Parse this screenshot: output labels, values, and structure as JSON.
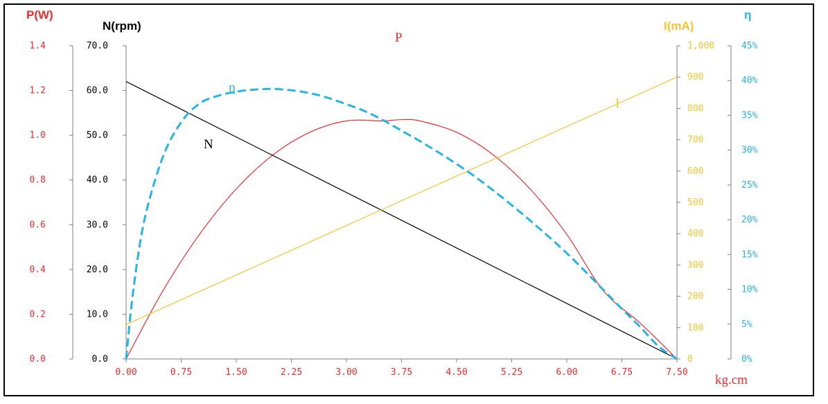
{
  "chart_data": {
    "type": "line",
    "xlabel": "kg.cm",
    "x_ticks": [
      "0.00",
      "0.75",
      "1.50",
      "2.25",
      "3.00",
      "3.75",
      "4.50",
      "5.25",
      "6.00",
      "6.75",
      "7.50"
    ],
    "xlim": [
      0,
      7.5
    ],
    "axes": {
      "P": {
        "title": "P(W)",
        "ylim": [
          0,
          1.4
        ],
        "ticks": [
          "0.0",
          "0.2",
          "0.4",
          "0.6",
          "0.8",
          "1.0",
          "1.2",
          "1.4"
        ]
      },
      "N": {
        "title": "N(rpm)",
        "ylim": [
          0,
          70
        ],
        "ticks": [
          "0.0",
          "10.0",
          "20.0",
          "30.0",
          "40.0",
          "50.0",
          "60.0",
          "70.0"
        ]
      },
      "I": {
        "title": "I(mA)",
        "ylim": [
          0,
          1000
        ],
        "ticks": [
          "0",
          "100",
          "200",
          "300",
          "400",
          "500",
          "600",
          "700",
          "800",
          "900",
          "1,000"
        ]
      },
      "eta": {
        "title": "η",
        "ylim": [
          0,
          45
        ],
        "ticks": [
          "0%",
          "5%",
          "10%",
          "15%",
          "20%",
          "25%",
          "30%",
          "35%",
          "40%",
          "45%"
        ]
      }
    },
    "series": [
      {
        "name": "P",
        "axis": "P",
        "style": "solid",
        "x": [
          0,
          0.5,
          1,
          1.5,
          2,
          2.5,
          3,
          3.5,
          3.75,
          4,
          4.5,
          5,
          5.5,
          6,
          6.5,
          7,
          7.5
        ],
        "y": [
          0,
          0.304,
          0.557,
          0.76,
          0.912,
          1.013,
          1.064,
          1.064,
          1.07,
          1.064,
          1.013,
          0.912,
          0.76,
          0.557,
          0.304,
          0.16,
          0
        ]
      },
      {
        "name": "N",
        "axis": "N",
        "style": "solid",
        "x": [
          0,
          7.5
        ],
        "y": [
          62,
          0
        ]
      },
      {
        "name": "I",
        "axis": "I",
        "style": "solid",
        "x": [
          0,
          7.5
        ],
        "y": [
          110,
          900
        ]
      },
      {
        "name": "η",
        "axis": "eta",
        "style": "dashed",
        "x": [
          0,
          0.1,
          0.25,
          0.5,
          0.75,
          1,
          1.25,
          1.5,
          1.75,
          2,
          2.25,
          2.5,
          2.75,
          3,
          3.25,
          3.5,
          3.75,
          4,
          4.25,
          4.5,
          4.75,
          5,
          5.25,
          5.5,
          5.75,
          6,
          6.25,
          6.5,
          6.75,
          7,
          7.25,
          7.5
        ],
        "y": [
          0,
          10,
          20,
          29,
          34,
          36.7,
          37.8,
          38.4,
          38.7,
          38.8,
          38.6,
          38.2,
          37.5,
          36.6,
          35.6,
          34.3,
          32.8,
          31.3,
          29.7,
          28.0,
          26.2,
          24.2,
          22.1,
          19.9,
          17.6,
          15.2,
          12.6,
          9.9,
          7.2,
          4.6,
          1.8,
          0
        ]
      }
    ],
    "series_labels": {
      "P": "P",
      "N": "N",
      "I": "I",
      "eta": "η"
    },
    "colors": {
      "P": "#ee2a2a",
      "N": "#000000",
      "I": "#f5c430",
      "eta": "#25b4e8"
    }
  }
}
